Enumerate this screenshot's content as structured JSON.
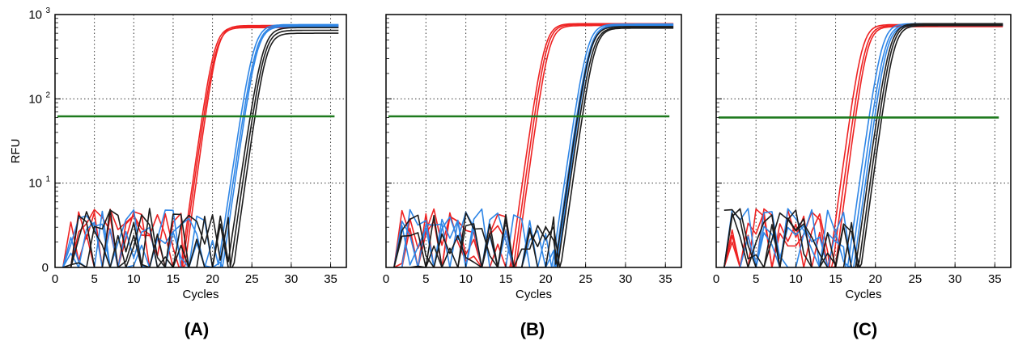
{
  "figure": {
    "ylabel": "RFU",
    "xlabel": "Cycles",
    "y_tick_labels": [
      {
        "base": "0",
        "exp": ""
      },
      {
        "base": "10",
        "exp": "1"
      },
      {
        "base": "10",
        "exp": "2"
      },
      {
        "base": "10",
        "exp": "3"
      }
    ],
    "colors": {
      "red": "#ee2222",
      "blue": "#2f86e6",
      "black": "#1c1c1c",
      "threshold": "#1e7a1e",
      "grid": "#333333"
    }
  },
  "chart_data": [
    {
      "type": "line",
      "panel_label": "(A)",
      "xlabel": "Cycles",
      "ylabel": "RFU",
      "xlim": [
        0,
        37
      ],
      "x_ticks": [
        0,
        5,
        10,
        15,
        20,
        25,
        30,
        35
      ],
      "y_scale": "log",
      "ylim": [
        1,
        1000
      ],
      "y_ticks": [
        1,
        10,
        100,
        1000
      ],
      "grid": true,
      "threshold": 62,
      "series": [
        {
          "color": "red",
          "ct": 18.7,
          "slope": 1.55,
          "plateau": 720
        },
        {
          "color": "red",
          "ct": 18.9,
          "slope": 1.55,
          "plateau": 700
        },
        {
          "color": "red",
          "ct": 19.1,
          "slope": 1.6,
          "plateau": 740
        },
        {
          "color": "blue",
          "ct": 23.6,
          "slope": 1.45,
          "plateau": 760
        },
        {
          "color": "blue",
          "ct": 23.9,
          "slope": 1.45,
          "plateau": 740
        },
        {
          "color": "blue",
          "ct": 24.1,
          "slope": 1.5,
          "plateau": 720
        },
        {
          "color": "black",
          "ct": 24.8,
          "slope": 1.45,
          "plateau": 700
        },
        {
          "color": "black",
          "ct": 25.1,
          "slope": 1.5,
          "plateau": 650
        },
        {
          "color": "black",
          "ct": 25.4,
          "slope": 1.55,
          "plateau": 600
        }
      ]
    },
    {
      "type": "line",
      "panel_label": "(B)",
      "xlabel": "Cycles",
      "ylabel": "",
      "xlim": [
        0,
        37
      ],
      "x_ticks": [
        0,
        5,
        10,
        15,
        20,
        25,
        30,
        35
      ],
      "y_scale": "log",
      "ylim": [
        1,
        1000
      ],
      "y_ticks": [
        1,
        10,
        100,
        1000
      ],
      "grid": true,
      "threshold": 62,
      "series": [
        {
          "color": "red",
          "ct": 18.3,
          "slope": 1.55,
          "plateau": 780
        },
        {
          "color": "red",
          "ct": 18.6,
          "slope": 1.6,
          "plateau": 760
        },
        {
          "color": "red",
          "ct": 18.9,
          "slope": 1.6,
          "plateau": 740
        },
        {
          "color": "blue",
          "ct": 23.6,
          "slope": 1.5,
          "plateau": 770
        },
        {
          "color": "blue",
          "ct": 23.9,
          "slope": 1.5,
          "plateau": 750
        },
        {
          "color": "blue",
          "ct": 24.1,
          "slope": 1.55,
          "plateau": 730
        },
        {
          "color": "black",
          "ct": 24.0,
          "slope": 1.5,
          "plateau": 720
        },
        {
          "color": "black",
          "ct": 24.3,
          "slope": 1.5,
          "plateau": 700
        },
        {
          "color": "black",
          "ct": 24.6,
          "slope": 1.55,
          "plateau": 690
        }
      ]
    },
    {
      "type": "line",
      "panel_label": "(C)",
      "xlabel": "Cycles",
      "ylabel": "",
      "xlim": [
        0,
        37
      ],
      "x_ticks": [
        0,
        5,
        10,
        15,
        20,
        25,
        30,
        35
      ],
      "y_scale": "log",
      "ylim": [
        1,
        1000
      ],
      "y_ticks": [
        1,
        10,
        100,
        1000
      ],
      "grid": true,
      "threshold": 60,
      "series": [
        {
          "color": "red",
          "ct": 16.8,
          "slope": 1.6,
          "plateau": 760
        },
        {
          "color": "red",
          "ct": 17.2,
          "slope": 1.6,
          "plateau": 740
        },
        {
          "color": "red",
          "ct": 17.5,
          "slope": 1.65,
          "plateau": 720
        },
        {
          "color": "blue",
          "ct": 19.2,
          "slope": 1.55,
          "plateau": 780
        },
        {
          "color": "blue",
          "ct": 19.6,
          "slope": 1.55,
          "plateau": 760
        },
        {
          "color": "blue",
          "ct": 19.9,
          "slope": 1.6,
          "plateau": 740
        },
        {
          "color": "black",
          "ct": 20.2,
          "slope": 1.55,
          "plateau": 780
        },
        {
          "color": "black",
          "ct": 20.5,
          "slope": 1.6,
          "plateau": 760
        },
        {
          "color": "black",
          "ct": 20.8,
          "slope": 1.6,
          "plateau": 740
        }
      ]
    }
  ]
}
